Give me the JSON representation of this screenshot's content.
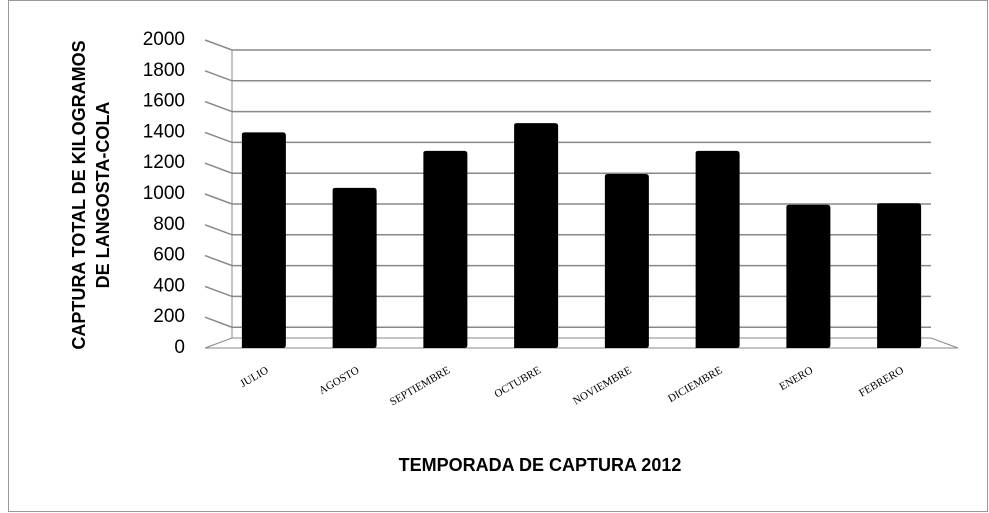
{
  "chart_data": {
    "type": "bar",
    "y_axis_label": [
      "CAPTURA TOTAL DE KILOGRAMOS",
      "DE LANGOSTA-COLA"
    ],
    "x_axis_label": "TEMPORADA DE CAPTURA 2012",
    "categories": [
      "JULIO",
      "AGOSTO",
      "SEPTIEMBRE",
      "OCTUBRE",
      "NOVIEMBRE",
      "DICIEMBRE",
      "ENERO",
      "FEBRERO"
    ],
    "values": [
      1400,
      1040,
      1280,
      1460,
      1130,
      1280,
      930,
      940
    ],
    "color": "#000000",
    "ylim": [
      0,
      2000
    ],
    "yticks": [
      0,
      200,
      400,
      600,
      800,
      1000,
      1200,
      1400,
      1600,
      1800,
      2000
    ],
    "grid": true
  }
}
